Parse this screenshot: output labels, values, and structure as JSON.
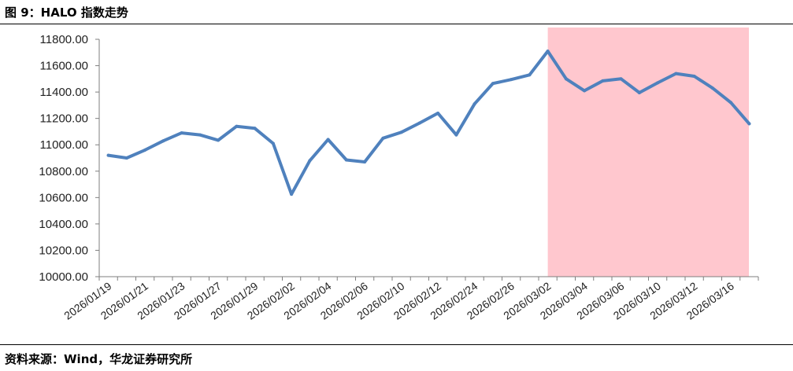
{
  "figure": {
    "title": "图 9：HALO 指数走势",
    "source": "资料来源：Wind，华龙证券研究所"
  },
  "chart_data": {
    "type": "line",
    "title": "",
    "xlabel": "",
    "ylabel": "",
    "ylim": [
      10000,
      11800
    ],
    "y_ticks": [
      "10000.00",
      "10200.00",
      "10400.00",
      "10600.00",
      "10800.00",
      "11000.00",
      "11200.00",
      "11400.00",
      "11600.00",
      "11800.00"
    ],
    "y_tick_values": [
      10000,
      10200,
      10400,
      10600,
      10800,
      11000,
      11200,
      11400,
      11600,
      11800
    ],
    "x_tick_labels": [
      "2026/01/19",
      "2026/01/21",
      "2026/01/23",
      "2026/01/27",
      "2026/01/29",
      "2026/02/02",
      "2026/02/04",
      "2026/02/06",
      "2026/02/10",
      "2026/02/12",
      "2026/02/24",
      "2026/02/26",
      "2026/03/02",
      "2026/03/04",
      "2026/03/06",
      "2026/03/10",
      "2026/03/12",
      "2026/03/16"
    ],
    "grid": false,
    "legend": "none",
    "line_color": "#4f81bd",
    "highlight_color": "#ffc7ce",
    "highlight_range": [
      "2026/03/02",
      "2026/03/17"
    ],
    "series": [
      {
        "values": [
          10920,
          10900,
          10960,
          11030,
          11090,
          11075,
          11035,
          11140,
          11125,
          11010,
          10625,
          10880,
          11040,
          10885,
          10870,
          11050,
          11095,
          11165,
          11240,
          11075,
          11310,
          11465,
          11495,
          11530,
          11710,
          11500,
          11410,
          11485,
          11500,
          11395,
          11470,
          11540,
          11520,
          11430,
          11320,
          11160
        ]
      }
    ]
  }
}
